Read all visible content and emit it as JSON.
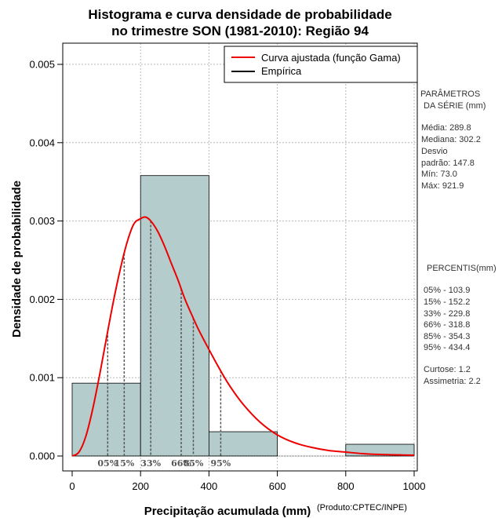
{
  "chart_data": {
    "type": "histogram",
    "title_lines": [
      "Histograma e curva densidade de probabilidade",
      "no trimestre SON (1981-2010): Região 94"
    ],
    "xlabel": "Precipitação acumulada (mm)",
    "ylabel": "Densidade de probabilidade",
    "credit": "(Produto:CPTEC/INPE)",
    "xlim": [
      0,
      1000
    ],
    "ylim": [
      0,
      0.005
    ],
    "x_ticks": [
      0,
      200,
      400,
      600,
      800,
      1000
    ],
    "x_tick_labels": [
      "0",
      "200",
      "400",
      "600",
      "800",
      "1000"
    ],
    "y_ticks": [
      0,
      0.001,
      0.002,
      0.003,
      0.004,
      0.005
    ],
    "y_tick_labels": [
      "0.000",
      "0.001",
      "0.002",
      "0.003",
      "0.004",
      "0.005"
    ],
    "bins": [
      {
        "from": 0,
        "to": 200,
        "density": 0.00093
      },
      {
        "from": 200,
        "to": 400,
        "density": 0.00358
      },
      {
        "from": 400,
        "to": 600,
        "density": 0.00031
      },
      {
        "from": 600,
        "to": 800,
        "density": 0
      },
      {
        "from": 800,
        "to": 1000,
        "density": 0.00015
      }
    ],
    "bar_color": "#b4cccc",
    "curve_color": "#ee0000",
    "curve_label": "Curva ajustada (função Gama)",
    "empirical_label": "Empírica",
    "curve": {
      "x": [
        0,
        20,
        40,
        60,
        80,
        100,
        120,
        140,
        160,
        180,
        200,
        215,
        230,
        250,
        270,
        290,
        310,
        330,
        350,
        370,
        400,
        430,
        460,
        500,
        550,
        600,
        650,
        700,
        750,
        800,
        850,
        900,
        950,
        1000
      ],
      "y": [
        0,
        5e-05,
        0.00025,
        0.0006,
        0.00103,
        0.0015,
        0.00196,
        0.00237,
        0.00272,
        0.00296,
        0.00303,
        0.00305,
        0.003,
        0.00287,
        0.00268,
        0.00246,
        0.00224,
        0.002,
        0.0018,
        0.00161,
        0.00136,
        0.00112,
        0.0009,
        0.00066,
        0.00043,
        0.00027,
        0.00017,
        0.00011,
        7e-05,
        5e-05,
        3e-05,
        2e-05,
        1.5e-05,
        1e-05
      ]
    },
    "percentile_lines": [
      {
        "label": "05%",
        "x": 103.9
      },
      {
        "label": "15%",
        "x": 152.2
      },
      {
        "label": "33%",
        "x": 229.8
      },
      {
        "label": "66%",
        "x": 318.8
      },
      {
        "label": "85%",
        "x": 354.3
      },
      {
        "label": "95%",
        "x": 434.4
      }
    ],
    "legend_position": "top-right"
  },
  "side_panel": {
    "params_title": [
      "PARÂMETROS",
      "DA SÉRIE (mm)"
    ],
    "params": [
      "Média:  289.8",
      "Mediana:  302.2",
      "Desvio",
      "padrão:  147.8",
      "Mín:  73.0",
      "Máx:  921.9"
    ],
    "percentiles_title": "PERCENTIS(mm)",
    "percentiles": [
      "05% -  103.9",
      "15% -  152.2",
      "33% -  229.8",
      "66% -  318.8",
      "85% -  354.3",
      "95% -  434.4"
    ],
    "stats": [
      "Curtose:  1.2",
      "Assimetria:  2.2"
    ]
  }
}
